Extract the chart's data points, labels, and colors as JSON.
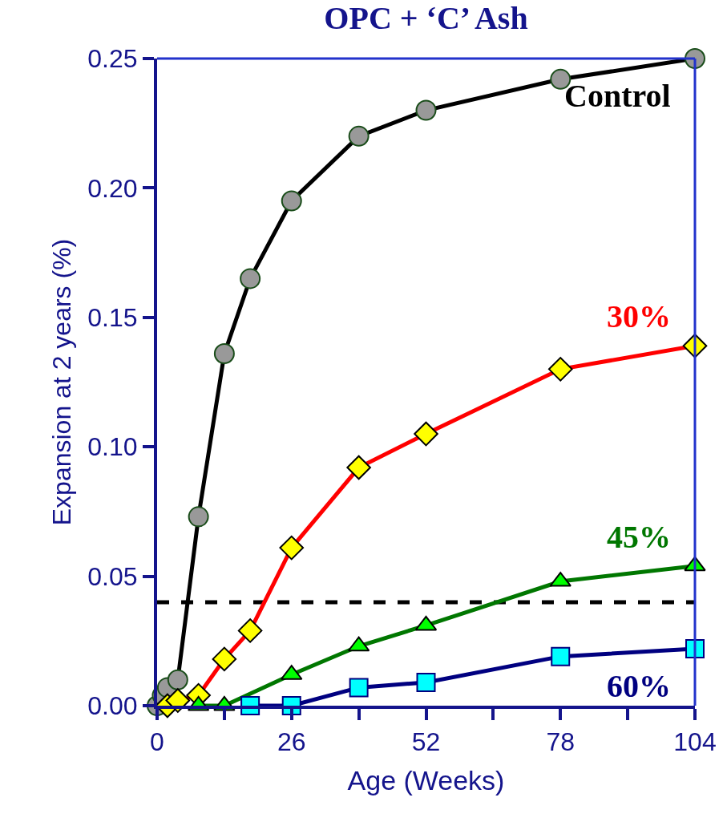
{
  "chart_data": {
    "type": "line",
    "title": "OPC + ‘C’ Ash",
    "xlabel": "Age (Weeks)",
    "ylabel": "Expansion at 2 years (%)",
    "xlim": [
      0,
      104
    ],
    "xticks": [
      0,
      {
        "value": 13,
        "label": null
      },
      26,
      {
        "value": 39,
        "label": null
      },
      52,
      {
        "value": 65,
        "label": null
      },
      78,
      {
        "value": 91,
        "label": null
      },
      104
    ],
    "ylim": [
      0,
      0.25
    ],
    "yticks": [
      {
        "value": 0,
        "label": "0.00"
      },
      {
        "value": 0.05,
        "label": "0.05"
      },
      {
        "value": 0.1,
        "label": "0.10"
      },
      {
        "value": 0.15,
        "label": "0.15"
      },
      {
        "value": 0.2,
        "label": "0.20"
      },
      {
        "value": 0.25,
        "label": "0.25"
      }
    ],
    "grid": false,
    "legend": false,
    "line_style": "solid",
    "ref_lines": [
      {
        "axis": "y",
        "value": 0.04,
        "color": "#000000",
        "line_style": "dashed"
      }
    ],
    "series": [
      {
        "name": "Control",
        "color": "#000000",
        "marker": "circle",
        "colors": [
          "#999999",
          "#999999",
          "#999999",
          "#999999",
          "#999999",
          "#999999",
          "#999999",
          "#999999",
          "#999999",
          "#999999",
          "#999999",
          "#999999"
        ],
        "x": [
          0,
          1,
          2,
          4,
          8,
          13,
          18,
          26,
          39,
          52,
          78,
          104
        ],
        "values": [
          0,
          0.004,
          0.007,
          0.01,
          0.073,
          0.136,
          0.165,
          0.195,
          0.22,
          0.23,
          0.242,
          0.25
        ]
      },
      {
        "name": "30%",
        "color": "#ff0000",
        "marker": "diamond",
        "colors": [
          "#ffff00",
          "#ffff00",
          "#ffff00",
          "#ffff00",
          "#ffff00",
          "#ffff00",
          "#ffff00",
          "#ffff00",
          "#ffff00",
          "#ffff00"
        ],
        "x": [
          2,
          4,
          8,
          13,
          18,
          26,
          39,
          52,
          78,
          104
        ],
        "values": [
          0,
          0.002,
          0.004,
          0.018,
          0.029,
          0.061,
          0.092,
          0.105,
          0.13,
          0.139
        ]
      },
      {
        "name": "45%",
        "color": "#007700",
        "marker": "triangle",
        "colors": [
          "#00ff00",
          "#00ff00",
          "#00ff00",
          "#00ff00",
          "#00ff00",
          "#00ff00",
          "#00ff00"
        ],
        "x": [
          8,
          13,
          26,
          39,
          52,
          78,
          104
        ],
        "values": [
          0,
          0,
          0.012,
          0.023,
          0.031,
          0.048,
          0.054
        ]
      },
      {
        "name": "60%",
        "color": "#000080",
        "marker": "square",
        "colors": [
          "#00ffff",
          "#00ffff",
          "#00ffff",
          "#00ffff",
          "#00ffff",
          "#00ffff"
        ],
        "x": [
          18,
          26,
          39,
          52,
          78,
          104
        ],
        "values": [
          0,
          0,
          0.007,
          0.009,
          0.019,
          0.022
        ]
      }
    ]
  }
}
